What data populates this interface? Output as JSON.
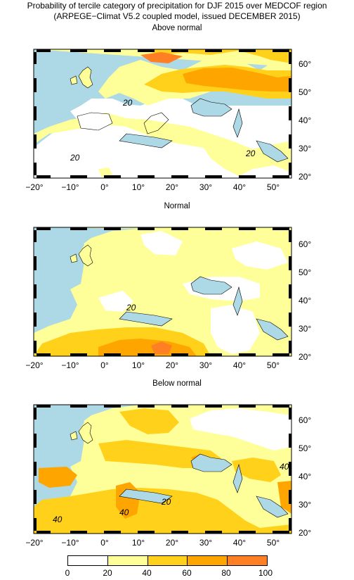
{
  "title_line1": "Probability of tercile category of precipitation for DJF 2015 over MEDCOF region",
  "title_line2": "(ARPEGE−Climat V5.2 coupled model, issued DECEMBER 2015)",
  "lon_ticks": [
    "−20°",
    "−10°",
    "0°",
    "10°",
    "20°",
    "30°",
    "40°",
    "50°"
  ],
  "lat_ticks": [
    "60°",
    "50°",
    "40°",
    "30°",
    "20°"
  ],
  "colors": {
    "sea": "#add8e6",
    "c0_20": "#ffffff",
    "c20_40": "#ffff99",
    "c40_60": "#ffd11a",
    "c60_80": "#ffa500",
    "c80_100": "#ff7f24"
  },
  "panels": [
    {
      "title": "Above normal",
      "contour_labels": [
        "20",
        "20",
        "20"
      ]
    },
    {
      "title": "Normal",
      "contour_labels": [
        "20"
      ]
    },
    {
      "title": "Below normal",
      "contour_labels": [
        "20",
        "40",
        "40",
        "40"
      ]
    }
  ],
  "colorbar": {
    "labels": [
      "0",
      "20",
      "40",
      "60",
      "80",
      "100"
    ]
  }
}
